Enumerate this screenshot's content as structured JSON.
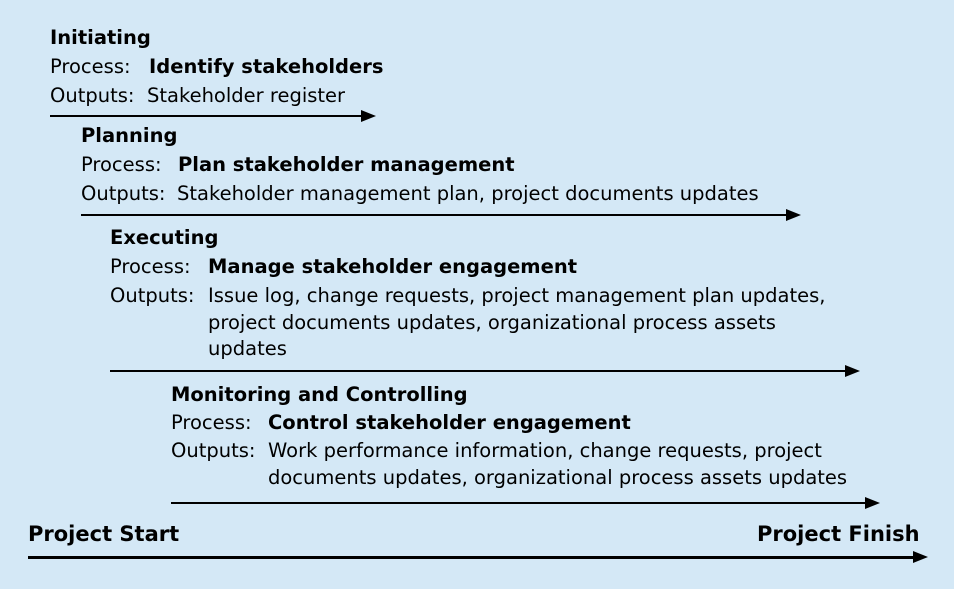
{
  "phases": [
    {
      "title": "Initiating",
      "process_label": "Process:",
      "process": "Identify stakeholders",
      "outputs_label": "Outputs:",
      "outputs_lines": [
        "Stakeholder register"
      ]
    },
    {
      "title": "Planning",
      "process_label": "Process:",
      "process": "Plan stakeholder management",
      "outputs_label": "Outputs:",
      "outputs_lines": [
        "Stakeholder management plan, project documents updates"
      ]
    },
    {
      "title": "Executing",
      "process_label": "Process:",
      "process": "Manage stakeholder engagement",
      "outputs_label": "Outputs:",
      "outputs_lines": [
        "Issue log, change requests, project management plan updates,",
        "project documents updates, organizational process assets",
        "updates"
      ]
    },
    {
      "title": "Monitoring and Controlling",
      "process_label": "Process:",
      "process": "Control stakeholder engagement",
      "outputs_label": "Outputs:",
      "outputs_lines": [
        "Work performance information, change requests, project",
        "documents updates, organizational process assets updates"
      ]
    }
  ],
  "timeline": {
    "start_label": "Project Start",
    "finish_label": "Project Finish"
  },
  "colors": {
    "background": "#d4e8f6",
    "ink": "#000000"
  }
}
